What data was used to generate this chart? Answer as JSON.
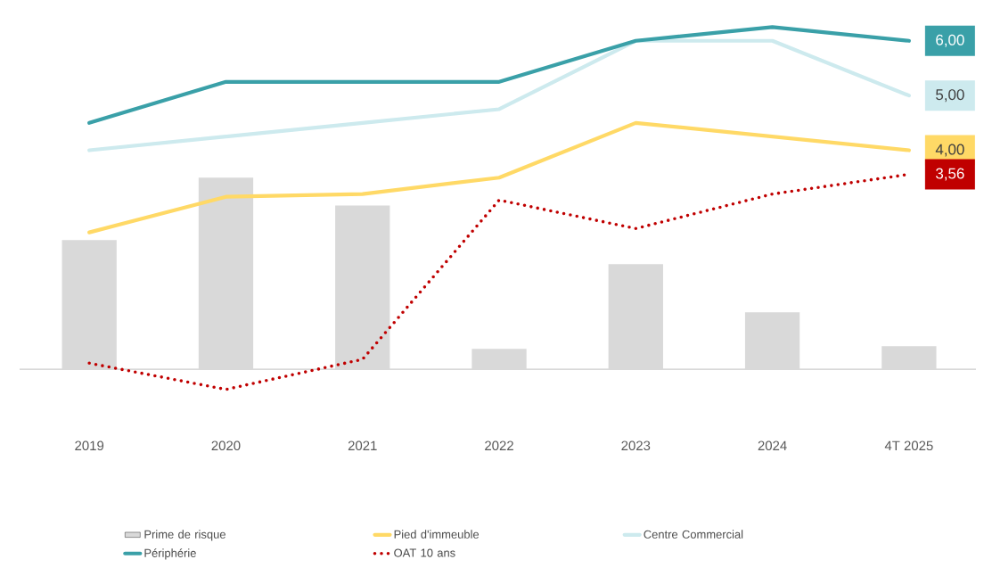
{
  "chart_data": {
    "type": "line",
    "categories": [
      "2019",
      "2020",
      "2021",
      "2022",
      "2023",
      "2024",
      "4T 2025"
    ],
    "legend": "bottom",
    "marker": "none",
    "line_style": "solid",
    "series": [
      {
        "name": "Prime de risque",
        "type": "bar",
        "color": "#d9d9d9",
        "values": [
          2.36,
          3.5,
          2.99,
          0.37,
          1.92,
          1.04,
          0.42
        ]
      },
      {
        "name": "Pied d'immeuble",
        "color": "#ffd966",
        "values": [
          2.5,
          3.15,
          3.2,
          3.5,
          4.5,
          4.25,
          4.0
        ],
        "value_labels": [
          null,
          null,
          null,
          null,
          null,
          null,
          "4,00"
        ]
      },
      {
        "name": "Centre Commercial",
        "color": "#cdeaee",
        "values": [
          4.0,
          4.25,
          4.5,
          4.75,
          6.0,
          6.0,
          5.0
        ],
        "value_labels": [
          null,
          null,
          null,
          null,
          null,
          null,
          "5,00"
        ]
      },
      {
        "name": "Périphérie",
        "color": "#3aa0a8",
        "values": [
          4.5,
          5.25,
          5.25,
          5.25,
          6.0,
          6.25,
          6.0
        ],
        "value_labels": [
          null,
          null,
          null,
          null,
          null,
          null,
          "6,00"
        ]
      },
      {
        "name": "OAT 10 ans",
        "color": "#c00000",
        "line_style": "dotted",
        "values": [
          0.11,
          -0.37,
          0.18,
          3.09,
          2.57,
          3.2,
          3.56
        ],
        "value_labels": [
          null,
          null,
          null,
          null,
          null,
          null,
          "3,56"
        ]
      }
    ]
  }
}
